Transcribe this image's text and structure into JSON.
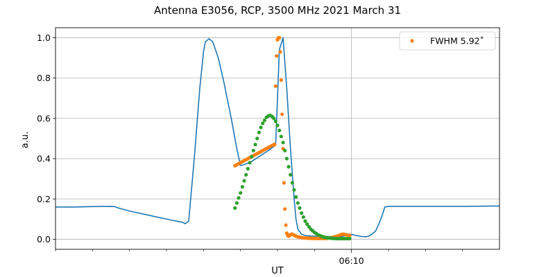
{
  "chart_data": {
    "type": "line",
    "title": "Antenna E3056, RCP, 3500 MHz 2021 March 31",
    "xlabel": "UT",
    "ylabel": "a.u.",
    "ylim": [
      -0.05,
      1.05
    ],
    "xlim": [
      0,
      24
    ],
    "x_unit": "minutes",
    "y_ticks": [
      "0.0",
      "0.2",
      "0.4",
      "0.6",
      "0.8",
      "1.0"
    ],
    "y_tick_values": [
      0.0,
      0.2,
      0.4,
      0.6,
      0.8,
      1.0
    ],
    "x_tick_labels": [
      {
        "x": 16,
        "label": "06:10"
      }
    ],
    "x_minor_ticks": [
      0,
      2,
      4,
      6,
      8,
      10,
      12,
      14,
      18,
      20,
      22
    ],
    "grid": true,
    "legend_position": "top-right",
    "colors": {
      "blue": "#1f77b4",
      "orange": "#ff7f0e",
      "green": "#2ca02c"
    },
    "series": [
      {
        "kind": "line",
        "color": "#1f77b4",
        "x": [
          0,
          1,
          2,
          3,
          3.2,
          3.4,
          4,
          5,
          6,
          6.9,
          7.0,
          7.2,
          7.5,
          7.8,
          8.0,
          8.1,
          8.3,
          8.5,
          8.8,
          9.1,
          9.5,
          9.8,
          10.0,
          10.5,
          11.0,
          11.5,
          11.8,
          11.9,
          12.0,
          12.1,
          12.3,
          12.5,
          12.7,
          12.9,
          13.0,
          13.1,
          13.3,
          13.5,
          13.8,
          14.5,
          15.0,
          15.5,
          16.0,
          16.5,
          16.8,
          17.0,
          17.3,
          17.5,
          17.7,
          17.8,
          18,
          20,
          22,
          24
        ],
        "y": [
          0.16,
          0.16,
          0.162,
          0.163,
          0.162,
          0.155,
          0.14,
          0.12,
          0.1,
          0.083,
          0.077,
          0.09,
          0.4,
          0.75,
          0.93,
          0.98,
          0.995,
          0.98,
          0.9,
          0.78,
          0.6,
          0.45,
          0.365,
          0.38,
          0.41,
          0.44,
          0.46,
          0.47,
          0.7,
          0.94,
          1.0,
          0.75,
          0.45,
          0.2,
          0.1,
          0.05,
          0.025,
          0.018,
          0.016,
          0.014,
          0.013,
          0.014,
          0.024,
          0.014,
          0.012,
          0.018,
          0.04,
          0.08,
          0.13,
          0.16,
          0.163,
          0.163,
          0.163,
          0.165
        ]
      },
      {
        "kind": "scatter",
        "name": "FWHM 5.92$^\\circ$",
        "legend_label": "FWHM 5.92˚",
        "color": "#ff7f0e",
        "x": [
          9.7,
          9.8,
          9.9,
          10.0,
          10.1,
          10.2,
          10.3,
          10.4,
          10.5,
          10.6,
          10.7,
          10.8,
          10.9,
          11.0,
          11.1,
          11.2,
          11.3,
          11.4,
          11.5,
          11.6,
          11.7,
          11.8,
          11.85,
          11.9,
          11.95,
          12.0,
          12.05,
          12.1,
          12.15,
          12.2,
          12.25,
          12.3,
          12.35,
          12.4,
          12.45,
          12.5,
          12.55,
          12.6,
          12.65,
          12.7,
          12.75,
          12.8,
          12.9,
          13.0,
          13.1,
          13.2,
          13.3,
          13.4,
          13.5,
          13.6,
          13.7,
          13.8,
          13.9,
          14.0,
          14.1,
          14.2,
          14.3,
          14.4,
          14.5,
          14.6,
          14.7,
          14.8,
          14.9,
          15.0,
          15.1,
          15.2,
          15.3,
          15.4,
          15.5,
          15.6,
          15.7,
          15.8,
          15.9
        ],
        "y": [
          0.365,
          0.37,
          0.375,
          0.38,
          0.385,
          0.39,
          0.395,
          0.4,
          0.405,
          0.41,
          0.415,
          0.42,
          0.425,
          0.43,
          0.435,
          0.44,
          0.445,
          0.45,
          0.455,
          0.46,
          0.465,
          0.47,
          0.47,
          0.76,
          0.91,
          0.99,
          1.0,
          1.0,
          0.93,
          0.79,
          0.62,
          0.45,
          0.28,
          0.15,
          0.07,
          0.03,
          0.02,
          0.015,
          0.02,
          0.022,
          0.025,
          0.025,
          0.02,
          0.015,
          0.012,
          0.01,
          0.008,
          0.007,
          0.006,
          0.005,
          0.005,
          0.005,
          0.004,
          0.004,
          0.004,
          0.004,
          0.004,
          0.004,
          0.004,
          0.004,
          0.005,
          0.006,
          0.008,
          0.01,
          0.012,
          0.015,
          0.018,
          0.022,
          0.025,
          0.025,
          0.022,
          0.02,
          0.02
        ]
      },
      {
        "kind": "scatter",
        "color": "#2ca02c",
        "x": [
          9.7,
          9.8,
          9.9,
          10.0,
          10.1,
          10.2,
          10.3,
          10.4,
          10.5,
          10.6,
          10.7,
          10.8,
          10.9,
          11.0,
          11.1,
          11.2,
          11.3,
          11.4,
          11.5,
          11.6,
          11.7,
          11.8,
          11.9,
          12.0,
          12.1,
          12.2,
          12.3,
          12.4,
          12.5,
          12.6,
          12.7,
          12.8,
          12.9,
          13.0,
          13.1,
          13.2,
          13.3,
          13.4,
          13.5,
          13.6,
          13.7,
          13.8,
          13.9,
          14.0,
          14.1,
          14.2,
          14.3,
          14.4,
          14.5,
          14.6,
          14.7,
          14.8,
          14.9,
          15.0,
          15.1,
          15.2,
          15.3,
          15.4,
          15.5,
          15.6,
          15.7,
          15.8,
          15.9
        ],
        "y": [
          0.155,
          0.18,
          0.205,
          0.23,
          0.26,
          0.29,
          0.32,
          0.35,
          0.38,
          0.41,
          0.44,
          0.47,
          0.5,
          0.53,
          0.555,
          0.575,
          0.59,
          0.605,
          0.612,
          0.615,
          0.61,
          0.6,
          0.585,
          0.565,
          0.54,
          0.51,
          0.48,
          0.44,
          0.4,
          0.36,
          0.32,
          0.28,
          0.245,
          0.21,
          0.18,
          0.155,
          0.13,
          0.11,
          0.09,
          0.075,
          0.062,
          0.05,
          0.042,
          0.034,
          0.028,
          0.022,
          0.018,
          0.014,
          0.011,
          0.009,
          0.007,
          0.006,
          0.005,
          0.004,
          0.004,
          0.003,
          0.003,
          0.003,
          0.003,
          0.003,
          0.003,
          0.003,
          0.003
        ]
      }
    ]
  }
}
